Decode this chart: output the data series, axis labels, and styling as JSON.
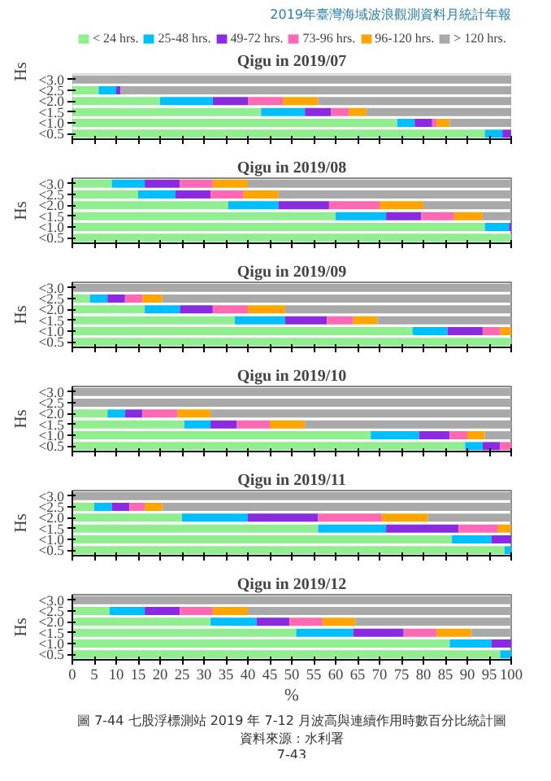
{
  "chart_data": [
    {
      "type": "bar",
      "stacked": true,
      "orientation": "horizontal",
      "title": "Qigu in 2019/07",
      "ylabel": "Hs",
      "categories": [
        "<3.0",
        "<2.5",
        "<2.0",
        "<1.5",
        "<1.0",
        "<0.5"
      ],
      "xlim": [
        0,
        100
      ],
      "xticks": [
        0,
        5,
        10,
        15,
        20,
        25,
        30,
        35,
        40,
        45,
        50,
        55,
        60,
        65,
        70,
        75,
        80,
        85,
        90,
        95,
        100
      ],
      "tick_labels": "y",
      "legend": "top",
      "annotations": [
        "2019年臺灣海域波浪觀測資料月統計年報"
      ],
      "series": [
        {
          "name": "< 24 hrs.",
          "color": "#90ee90",
          "values": [
            0,
            6,
            20,
            43,
            74,
            94
          ]
        },
        {
          "name": "25-48 hrs.",
          "color": "#00bfff",
          "values": [
            0,
            4,
            12,
            10,
            4,
            4
          ]
        },
        {
          "name": "49-72 hrs.",
          "color": "#8a2be2",
          "values": [
            0,
            1,
            8,
            6,
            4,
            2
          ]
        },
        {
          "name": "73-96 hrs.",
          "color": "#ff69b4",
          "values": [
            0,
            0,
            8,
            4,
            1,
            0
          ]
        },
        {
          "name": "96-120 hrs.",
          "color": "#ffa500",
          "values": [
            0,
            0,
            8,
            4,
            3,
            0
          ]
        },
        {
          "name": "> 120 hrs.",
          "color": "#a9a9a9",
          "values": [
            100,
            89,
            44,
            33,
            14,
            0
          ]
        }
      ]
    },
    {
      "type": "bar",
      "stacked": true,
      "orientation": "horizontal",
      "title": "Qigu in 2019/08",
      "ylabel": "Hs",
      "categories": [
        "<3.0",
        "<2.5",
        "<2.0",
        "<1.5",
        "<1.0",
        "<0.5"
      ],
      "xlim": [
        0,
        100
      ],
      "xticks": [
        0,
        5,
        10,
        15,
        20,
        25,
        30,
        35,
        40,
        45,
        50,
        55,
        60,
        65,
        70,
        75,
        80,
        85,
        90,
        95,
        100
      ],
      "tick_labels": "y",
      "series": [
        {
          "color": "#90ee90",
          "values": [
            9,
            15,
            35.5,
            60,
            94,
            100
          ]
        },
        {
          "color": "#00bfff",
          "values": [
            7.5,
            8.5,
            11.5,
            11.5,
            5.5,
            0
          ]
        },
        {
          "color": "#8a2be2",
          "values": [
            8,
            8,
            11.5,
            8,
            0.5,
            0
          ]
        },
        {
          "color": "#ff69b4",
          "values": [
            7.5,
            7.5,
            11.5,
            7.5,
            0,
            0
          ]
        },
        {
          "color": "#ffa500",
          "values": [
            8,
            8,
            10,
            6.5,
            0,
            0
          ]
        },
        {
          "color": "#a9a9a9",
          "values": [
            60,
            53,
            20,
            6.5,
            0,
            0
          ]
        }
      ]
    },
    {
      "type": "bar",
      "stacked": true,
      "orientation": "horizontal",
      "title": "Qigu in 2019/09",
      "ylabel": "Hs",
      "categories": [
        "<3.0",
        "<2.5",
        "<2.0",
        "<1.5",
        "<1.0",
        "<0.5"
      ],
      "xlim": [
        0,
        100
      ],
      "xticks": [
        0,
        5,
        10,
        15,
        20,
        25,
        30,
        35,
        40,
        45,
        50,
        55,
        60,
        65,
        70,
        75,
        80,
        85,
        90,
        95,
        100
      ],
      "tick_labels": "y",
      "series": [
        {
          "color": "#90ee90",
          "values": [
            0,
            4,
            16.5,
            37,
            77.5,
            100
          ]
        },
        {
          "color": "#00bfff",
          "values": [
            0,
            4,
            8,
            11.5,
            8,
            0
          ]
        },
        {
          "color": "#8a2be2",
          "values": [
            0,
            4,
            7.5,
            9.5,
            8,
            0
          ]
        },
        {
          "color": "#ff69b4",
          "values": [
            0,
            4,
            8,
            6,
            4,
            0
          ]
        },
        {
          "color": "#ffa500",
          "values": [
            0,
            4.5,
            8.5,
            5.5,
            2.5,
            0
          ]
        },
        {
          "color": "#a9a9a9",
          "values": [
            100,
            79.5,
            51.5,
            30.5,
            0,
            0
          ]
        }
      ]
    },
    {
      "type": "bar",
      "stacked": true,
      "orientation": "horizontal",
      "title": "Qigu in 2019/10",
      "ylabel": "Hs",
      "categories": [
        "<3.0",
        "<2.5",
        "<2.0",
        "<1.5",
        "<1.0",
        "<0.5"
      ],
      "xlim": [
        0,
        100
      ],
      "xticks": [
        0,
        5,
        10,
        15,
        20,
        25,
        30,
        35,
        40,
        45,
        50,
        55,
        60,
        65,
        70,
        75,
        80,
        85,
        90,
        95,
        100
      ],
      "tick_labels": "y",
      "series": [
        {
          "color": "#90ee90",
          "values": [
            0,
            0,
            8,
            25.5,
            68,
            89.5
          ]
        },
        {
          "color": "#00bfff",
          "values": [
            0,
            0,
            4,
            6,
            11,
            4
          ]
        },
        {
          "color": "#8a2be2",
          "values": [
            0,
            0,
            4,
            6,
            7,
            4
          ]
        },
        {
          "color": "#ff69b4",
          "values": [
            0,
            0,
            8,
            7.5,
            4,
            2.5
          ]
        },
        {
          "color": "#ffa500",
          "values": [
            0,
            0,
            7.5,
            8,
            4,
            0
          ]
        },
        {
          "color": "#a9a9a9",
          "values": [
            100,
            100,
            68.5,
            47,
            6,
            0
          ]
        }
      ]
    },
    {
      "type": "bar",
      "stacked": true,
      "orientation": "horizontal",
      "title": "Qigu in 2019/11",
      "ylabel": "Hs",
      "categories": [
        "<3.0",
        "<2.5",
        "<2.0",
        "<1.5",
        "<1.0",
        "<0.5"
      ],
      "xlim": [
        0,
        100
      ],
      "xticks": [
        0,
        5,
        10,
        15,
        20,
        25,
        30,
        35,
        40,
        45,
        50,
        55,
        60,
        65,
        70,
        75,
        80,
        85,
        90,
        95,
        100
      ],
      "tick_labels": "y",
      "series": [
        {
          "color": "#90ee90",
          "values": [
            0,
            5,
            25,
            56,
            86.5,
            98.5
          ]
        },
        {
          "color": "#00bfff",
          "values": [
            0,
            4,
            15,
            15.5,
            9,
            1.5
          ]
        },
        {
          "color": "#8a2be2",
          "values": [
            0,
            4,
            16,
            16.5,
            4.5,
            0
          ]
        },
        {
          "color": "#ff69b4",
          "values": [
            0,
            3.5,
            14.5,
            9,
            0,
            0
          ]
        },
        {
          "color": "#ffa500",
          "values": [
            0,
            4,
            10.5,
            3,
            0,
            0
          ]
        },
        {
          "color": "#a9a9a9",
          "values": [
            100,
            79.5,
            19,
            0,
            0,
            0
          ]
        }
      ]
    },
    {
      "type": "bar",
      "stacked": true,
      "orientation": "horizontal",
      "title": "Qigu in 2019/12",
      "ylabel": "Hs",
      "xlabel": "%",
      "categories": [
        "<3.0",
        "<2.5",
        "<2.0",
        "<1.5",
        "<1.0",
        "<0.5"
      ],
      "xlim": [
        0,
        100
      ],
      "xticks": [
        0,
        5,
        10,
        15,
        20,
        25,
        30,
        35,
        40,
        45,
        50,
        55,
        60,
        65,
        70,
        75,
        80,
        85,
        90,
        95,
        100
      ],
      "annotations": [
        "圖 7-44 七股浮標測站 2019 年 7-12 月波高與連續作用時數百分比統計圖",
        "資料來源：水利署",
        "7-43"
      ],
      "series": [
        {
          "color": "#90ee90",
          "values": [
            0,
            8.5,
            31.5,
            51,
            86,
            97.5
          ]
        },
        {
          "color": "#00bfff",
          "values": [
            0,
            8,
            10.5,
            13,
            9.5,
            2.5
          ]
        },
        {
          "color": "#8a2be2",
          "values": [
            0,
            8,
            7.5,
            11.5,
            4.5,
            0
          ]
        },
        {
          "color": "#ff69b4",
          "values": [
            0,
            7.5,
            7.5,
            7.5,
            0,
            0
          ]
        },
        {
          "color": "#ffa500",
          "values": [
            0,
            8,
            7.5,
            8,
            0,
            0
          ]
        },
        {
          "color": "#a9a9a9",
          "values": [
            100,
            60,
            35.5,
            9,
            0,
            0
          ]
        }
      ]
    }
  ]
}
